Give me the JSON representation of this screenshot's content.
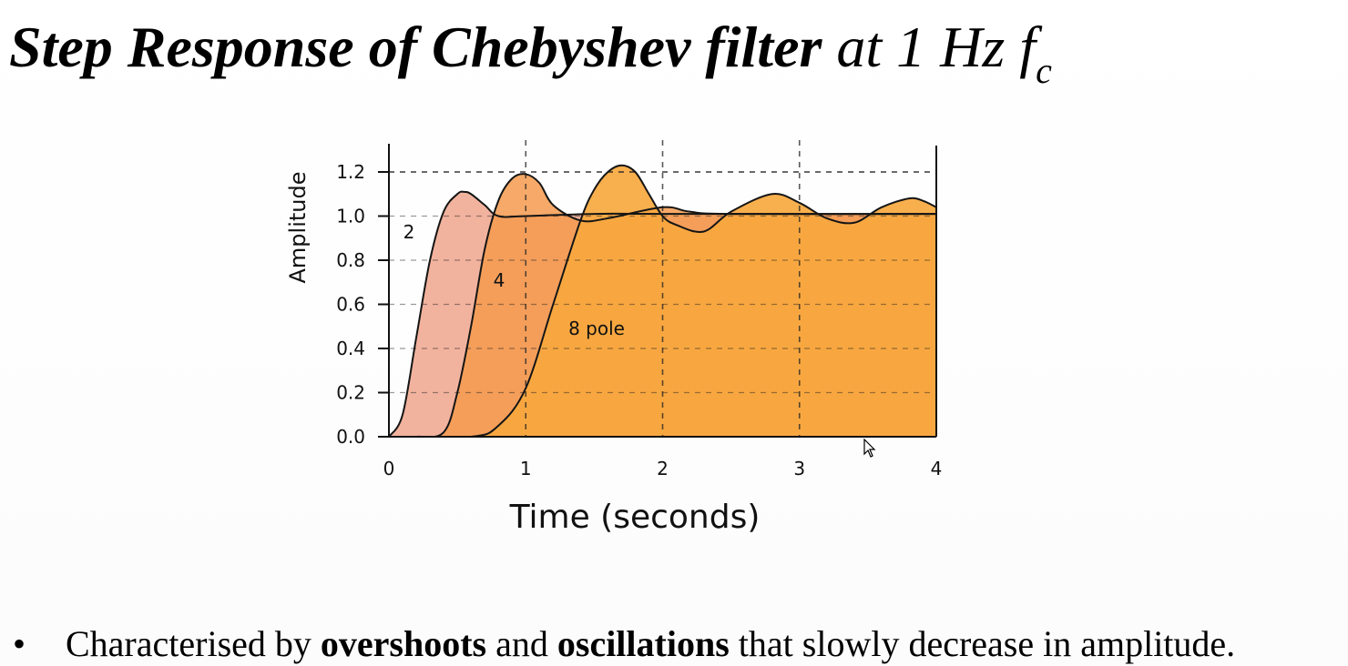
{
  "title": {
    "part1": "Step Response of Chebyshev filter",
    "part2": " at 1 Hz ",
    "f": "f",
    "sub": "c"
  },
  "bullet": {
    "marker": "•",
    "pre": "Characterised by ",
    "bold1": "overshoots",
    "mid": " and ",
    "bold2": "oscillations",
    "post": " that slowly decrease in amplitude."
  },
  "chart_data": {
    "type": "area",
    "xlabel": "Time (seconds)",
    "ylabel": "Amplitude",
    "xlim": [
      0,
      4
    ],
    "ylim": [
      0,
      1.3
    ],
    "xticks": [
      0,
      1,
      2,
      3,
      4
    ],
    "yticks": [
      0.0,
      0.2,
      0.4,
      0.6,
      0.8,
      1.0,
      1.2
    ],
    "ytick_labels": [
      "0.0",
      "0.2",
      "0.4",
      "0.6",
      "0.8",
      "1.0",
      "1.2"
    ],
    "grid": "dashed",
    "reference_line": 1.2,
    "series": [
      {
        "name": "2",
        "color": "#f0a68d",
        "x": [
          0,
          0.1,
          0.2,
          0.3,
          0.4,
          0.5,
          0.55,
          0.6,
          0.7,
          0.8,
          1.0,
          1.5,
          2.0,
          4.0
        ],
        "y": [
          0.0,
          0.1,
          0.45,
          0.8,
          1.02,
          1.1,
          1.11,
          1.1,
          1.05,
          1.0,
          1.0,
          1.01,
          1.01,
          1.01
        ]
      },
      {
        "name": "4",
        "color": "#f59a4e",
        "x": [
          0,
          0.2,
          0.4,
          0.5,
          0.6,
          0.7,
          0.8,
          0.9,
          1.0,
          1.1,
          1.2,
          1.4,
          1.6,
          2.0,
          2.2,
          2.5,
          4.0
        ],
        "y": [
          0.0,
          0.0,
          0.02,
          0.2,
          0.5,
          0.85,
          1.07,
          1.17,
          1.19,
          1.15,
          1.05,
          0.98,
          0.99,
          1.04,
          1.02,
          1.01,
          1.01
        ]
      },
      {
        "name": "8 pole",
        "color": "#f7a83e",
        "x": [
          0,
          0.6,
          0.8,
          1.0,
          1.2,
          1.4,
          1.5,
          1.6,
          1.7,
          1.8,
          1.9,
          2.0,
          2.1,
          2.3,
          2.5,
          2.8,
          3.0,
          3.2,
          3.4,
          3.6,
          3.8,
          3.9,
          4.0
        ],
        "y": [
          0.0,
          0.0,
          0.05,
          0.22,
          0.6,
          0.98,
          1.12,
          1.2,
          1.23,
          1.2,
          1.1,
          1.0,
          0.96,
          0.93,
          1.02,
          1.1,
          1.06,
          0.99,
          0.97,
          1.04,
          1.08,
          1.07,
          1.04
        ]
      }
    ]
  }
}
